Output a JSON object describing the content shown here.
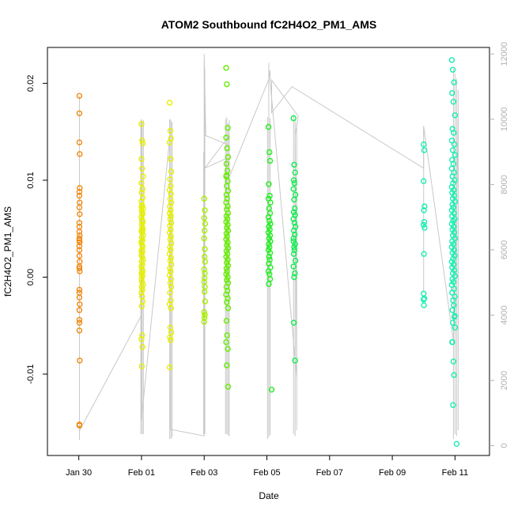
{
  "chart_data": {
    "type": "scatter",
    "title": "ATOM2 Southbound fC2H4O2_PM1_AMS",
    "xlabel": "Date",
    "ylabel": "fC2H4O2_PM1_AMS",
    "x_unit": "days",
    "xlim": [
      -0.5,
      13.6
    ],
    "ylim": [
      -0.0184,
      0.0237
    ],
    "y2lim": [
      -300,
      12200
    ],
    "x_ticks": [
      {
        "value": 0.5,
        "label": "Jan 30"
      },
      {
        "value": 2.5,
        "label": "Feb 01"
      },
      {
        "value": 4.5,
        "label": "Feb 03"
      },
      {
        "value": 6.5,
        "label": "Feb 05"
      },
      {
        "value": 8.5,
        "label": "Feb 07"
      },
      {
        "value": 10.5,
        "label": "Feb 09"
      },
      {
        "value": 12.5,
        "label": "Feb 11"
      }
    ],
    "y_ticks": [
      {
        "value": -0.01,
        "label": "-0.01"
      },
      {
        "value": 0.0,
        "label": "0.00"
      },
      {
        "value": 0.01,
        "label": "0.01"
      },
      {
        "value": 0.02,
        "label": "0.02"
      }
    ],
    "y2_ticks": [
      {
        "value": 0,
        "label": "0"
      },
      {
        "value": 2000,
        "label": "2000"
      },
      {
        "value": 4000,
        "label": "4000"
      },
      {
        "value": 6000,
        "label": "6000"
      },
      {
        "value": 8000,
        "label": "8000"
      },
      {
        "value": 10000,
        "label": "10000"
      },
      {
        "value": 12000,
        "label": "12000"
      }
    ],
    "grid": false,
    "legend": "none",
    "colors": {
      "orange": "#f08a10",
      "yellow": "#e6f000",
      "chartreuse": "#a8f000",
      "lime": "#66ee00",
      "green": "#22ee22",
      "bright_green": "#10ee50",
      "aqua": "#18f0b0",
      "track": "#c8c8c8"
    },
    "series": [
      {
        "color": "#f08a10",
        "x": [
          0.52,
          0.52,
          0.52,
          0.53,
          0.53,
          0.52,
          0.52,
          0.53,
          0.52,
          0.53,
          0.52,
          0.52,
          0.52,
          0.53,
          0.52,
          0.52,
          0.53,
          0.52,
          0.52,
          0.52,
          0.53,
          0.52,
          0.52,
          0.53,
          0.52,
          0.52,
          0.52,
          0.53,
          0.52,
          0.52,
          0.52,
          0.52,
          0.53,
          0.52,
          0.52
        ],
        "y": [
          0.0187,
          0.0169,
          0.0139,
          0.0127,
          0.0092,
          0.0088,
          0.0084,
          0.0077,
          0.0072,
          0.0065,
          0.0056,
          0.0052,
          0.0047,
          0.0043,
          0.004,
          0.0038,
          0.0036,
          0.0032,
          0.0028,
          0.0022,
          0.0016,
          0.0011,
          0.0009,
          0.0006,
          -0.0013,
          -0.0016,
          -0.0021,
          -0.0028,
          -0.0034,
          -0.0044,
          -0.0047,
          -0.0055,
          -0.0086,
          -0.0152,
          -0.0153
        ]
      },
      {
        "color": "#e6f000",
        "x": [
          2.5,
          2.52,
          2.54,
          2.5,
          2.52,
          2.55,
          2.5,
          2.53,
          2.51,
          2.54,
          2.5,
          2.52,
          2.55,
          2.51,
          2.53,
          2.5,
          2.52,
          2.54,
          2.51,
          2.53,
          2.5,
          2.52,
          2.55,
          2.51,
          2.53,
          2.5,
          2.52,
          2.54,
          2.51,
          2.53,
          2.5,
          2.52,
          2.55,
          2.51,
          2.53,
          2.5,
          2.52,
          2.54,
          2.51,
          2.53,
          2.5,
          2.52,
          2.55,
          2.51,
          2.53,
          2.5,
          2.52,
          2.54,
          2.51,
          2.53,
          2.5,
          2.52,
          2.54,
          2.51,
          2.5,
          2.52,
          2.5,
          2.53,
          2.51,
          2.5
        ],
        "y": [
          0.0158,
          0.0141,
          0.0138,
          0.0122,
          0.0112,
          0.0104,
          0.0097,
          0.0091,
          0.0087,
          0.0082,
          0.0078,
          0.0074,
          0.0071,
          0.0068,
          0.0065,
          0.0062,
          0.0059,
          0.0057,
          0.0054,
          0.0051,
          0.0048,
          0.0046,
          0.0043,
          0.0041,
          0.0038,
          0.0036,
          0.0033,
          0.0031,
          0.0028,
          0.0026,
          0.0023,
          0.0021,
          0.0018,
          0.0016,
          0.0013,
          0.0011,
          0.0008,
          0.0006,
          0.0003,
          0.0001,
          -0.0002,
          -0.0005,
          -0.0008,
          -0.001,
          -0.0013,
          -0.0016,
          -0.002,
          -0.0025,
          -0.003,
          0.0066,
          0.0072,
          0.0058,
          0.0049,
          0.0037,
          0.0027,
          -0.006,
          -0.0064,
          -0.0072,
          -0.0092,
          0.0004
        ]
      },
      {
        "color": "#e6f000",
        "x": [
          3.4,
          3.42,
          3.44,
          3.4,
          3.43,
          3.45,
          3.41,
          3.43,
          3.4,
          3.44,
          3.42,
          3.45,
          3.41,
          3.43,
          3.4,
          3.44,
          3.42,
          3.45,
          3.41,
          3.43,
          3.4,
          3.44,
          3.42,
          3.45,
          3.41,
          3.43,
          3.4,
          3.44,
          3.42,
          3.45,
          3.41,
          3.43,
          3.4,
          3.44,
          3.42,
          3.45,
          3.41,
          3.43,
          3.4,
          3.44,
          3.42,
          3.45,
          3.41,
          3.43,
          3.4
        ],
        "y": [
          0.018,
          0.0151,
          0.0143,
          0.0139,
          0.0122,
          0.0109,
          0.0101,
          0.0094,
          0.009,
          0.0086,
          0.0081,
          0.0077,
          0.0073,
          0.0069,
          0.0066,
          0.0063,
          0.006,
          0.0056,
          0.0053,
          0.0049,
          0.0046,
          0.0042,
          0.0039,
          0.0035,
          0.0031,
          0.0028,
          0.0024,
          0.002,
          0.0017,
          0.0013,
          0.0009,
          0.0006,
          0.0002,
          -0.0002,
          -0.0006,
          -0.001,
          -0.0016,
          -0.0024,
          -0.0028,
          -0.0032,
          -0.0052,
          -0.0057,
          -0.0062,
          -0.0065,
          -0.0093
        ]
      },
      {
        "color": "#a8f000",
        "x": [
          4.5,
          4.52,
          4.5,
          4.53,
          4.51,
          4.5,
          4.52,
          4.51,
          4.53,
          4.5,
          4.52,
          4.51,
          4.5,
          4.52,
          4.51,
          4.53,
          4.5,
          4.52,
          4.51,
          4.5
        ],
        "y": [
          0.0081,
          0.0069,
          0.0061,
          0.0055,
          0.0048,
          0.004,
          0.0029,
          0.0021,
          0.0016,
          0.0008,
          0.0004,
          -0.0001,
          -0.0005,
          -0.001,
          -0.0015,
          -0.0025,
          -0.0036,
          -0.0039,
          -0.0042,
          -0.0046
        ]
      },
      {
        "color": "#66ee00",
        "x": [
          5.2,
          5.22,
          5.25,
          5.2,
          5.23,
          5.26,
          5.21,
          5.24,
          5.2,
          5.25,
          5.22,
          5.26,
          5.21,
          5.23,
          5.2,
          5.25,
          5.22,
          5.26,
          5.21,
          5.24,
          5.2,
          5.25,
          5.22,
          5.26,
          5.21,
          5.23,
          5.2,
          5.25,
          5.22,
          5.26,
          5.21,
          5.24,
          5.2,
          5.25,
          5.22,
          5.26,
          5.21,
          5.23,
          5.2,
          5.25,
          5.22,
          5.26,
          5.21,
          5.24,
          5.2,
          5.25,
          5.22,
          5.26,
          5.21,
          5.23,
          5.2,
          5.25,
          5.22,
          5.26,
          5.21
        ],
        "y": [
          0.0216,
          0.0199,
          0.0154,
          0.0144,
          0.0133,
          0.0124,
          0.0117,
          0.011,
          0.0104,
          0.0099,
          0.0094,
          0.0089,
          0.0085,
          0.0081,
          0.0077,
          0.0073,
          0.007,
          0.0066,
          0.0063,
          0.006,
          0.0057,
          0.0054,
          0.0051,
          0.0048,
          0.0045,
          0.0042,
          0.0039,
          0.0036,
          0.0033,
          0.003,
          0.0027,
          0.0024,
          0.0021,
          0.0018,
          0.0015,
          0.0012,
          0.0009,
          0.0006,
          0.0003,
          0.0,
          -0.0003,
          -0.0006,
          -0.001,
          -0.0014,
          -0.0018,
          -0.0022,
          -0.0026,
          -0.0032,
          -0.0045,
          -0.006,
          -0.0067,
          -0.0074,
          -0.0091,
          -0.0113,
          0.0105
        ]
      },
      {
        "color": "#22ee22",
        "x": [
          6.55,
          6.58,
          6.6,
          6.56,
          6.59,
          6.55,
          6.61,
          6.57,
          6.6,
          6.55,
          6.58,
          6.61,
          6.56,
          6.59,
          6.55,
          6.6,
          6.57,
          6.61,
          6.56,
          6.58,
          6.55,
          6.6,
          6.57,
          6.59,
          6.56,
          6.61,
          6.55,
          6.58,
          6.6,
          6.56,
          6.65
        ],
        "y": [
          0.0155,
          0.0129,
          0.012,
          0.0096,
          0.0084,
          0.0081,
          0.0077,
          0.0071,
          0.0066,
          0.0062,
          0.0058,
          0.0055,
          0.0052,
          0.0049,
          0.0046,
          0.0043,
          0.004,
          0.0037,
          0.0034,
          0.0031,
          0.0028,
          0.0025,
          0.0021,
          0.0018,
          0.0014,
          0.001,
          0.0006,
          0.0003,
          -0.0002,
          -0.0007,
          -0.0116
        ]
      },
      {
        "color": "#10ee50",
        "x": [
          7.35,
          7.37,
          7.4,
          7.36,
          7.38,
          7.35,
          7.41,
          7.37,
          7.39,
          7.36,
          7.4,
          7.35,
          7.38,
          7.41,
          7.36,
          7.39,
          7.35,
          7.4,
          7.37,
          7.38,
          7.36,
          7.41,
          7.35,
          7.39,
          7.37,
          7.36,
          7.4,
          7.35
        ],
        "y": [
          0.0164,
          0.0116,
          0.0108,
          0.01,
          0.0097,
          0.0091,
          0.0085,
          0.008,
          0.0071,
          0.0067,
          0.0064,
          0.006,
          0.0056,
          0.0052,
          0.0048,
          0.0044,
          0.004,
          0.0034,
          0.0031,
          0.0028,
          0.0024,
          0.0017,
          0.0011,
          0.0004,
          0.0,
          -0.0047,
          -0.0086,
          0.0037
        ]
      },
      {
        "color": "#18f0b0",
        "x": [
          11.5,
          11.52,
          11.5,
          11.53,
          11.51,
          11.52,
          11.5,
          11.53,
          11.51,
          11.5,
          11.52,
          11.51,
          11.5
        ],
        "y": [
          0.0137,
          0.0131,
          0.0099,
          0.0073,
          0.0069,
          0.0057,
          0.0054,
          0.0051,
          0.0024,
          -0.0017,
          -0.0022,
          -0.0029,
          -0.0023
        ]
      },
      {
        "color": "#18f0b0",
        "x": [
          12.4,
          12.43,
          12.47,
          12.41,
          12.45,
          12.5,
          12.42,
          12.46,
          12.4,
          12.48,
          12.43,
          12.5,
          12.41,
          12.45,
          12.4,
          12.47,
          12.42,
          12.49,
          12.44,
          12.4,
          12.46,
          12.41,
          12.48,
          12.43,
          12.5,
          12.42,
          12.45,
          12.4,
          12.47,
          12.41,
          12.49,
          12.44,
          12.4,
          12.46,
          12.42,
          12.48,
          12.43,
          12.5,
          12.41,
          12.45,
          12.4,
          12.47,
          12.42,
          12.49,
          12.44,
          12.4,
          12.46,
          12.41,
          12.48,
          12.43,
          12.5,
          12.42,
          12.45,
          12.4,
          12.47,
          12.41,
          12.49,
          12.44,
          12.46,
          12.42,
          12.48,
          12.43,
          12.5,
          12.41,
          12.45,
          12.47,
          12.42,
          12.49,
          12.44,
          12.55
        ],
        "y": [
          0.0224,
          0.0214,
          0.0201,
          0.019,
          0.0181,
          0.0167,
          0.0153,
          0.0149,
          0.0141,
          0.0137,
          0.0131,
          0.0126,
          0.0121,
          0.0117,
          0.0112,
          0.0108,
          0.0104,
          0.01,
          0.0097,
          0.0093,
          0.009,
          0.0087,
          0.0084,
          0.0081,
          0.0078,
          0.0075,
          0.0072,
          0.0069,
          0.0066,
          0.0063,
          0.006,
          0.0058,
          0.0055,
          0.0052,
          0.0049,
          0.0046,
          0.0043,
          0.004,
          0.0037,
          0.0034,
          0.0031,
          0.0028,
          0.0025,
          0.0022,
          0.0019,
          0.0016,
          0.0013,
          0.001,
          0.0007,
          0.0004,
          0.0001,
          -0.0002,
          -0.0005,
          -0.0008,
          -0.0012,
          -0.0016,
          -0.002,
          -0.0024,
          -0.0029,
          -0.0034,
          -0.0041,
          -0.0047,
          -0.0052,
          -0.0067,
          -0.0087,
          -0.0101,
          -0.0067,
          -0.004,
          -0.0132,
          -0.0172
        ]
      }
    ],
    "track_right_axis": {
      "color": "#c8c8c8",
      "x": [
        0.52,
        2.5,
        2.5,
        2.5,
        3.45,
        3.4,
        3.42,
        4.5,
        4.5,
        4.55,
        5.3,
        5.3,
        4.52,
        5.2,
        5.2,
        6.55,
        6.6,
        6.6,
        7.45,
        7.4,
        7.5,
        6.65,
        6.65,
        7.3,
        11.5,
        11.5,
        12.45,
        12.5,
        12.6,
        12.6
      ],
      "y": [
        450,
        4000,
        10000,
        800,
        9900,
        10000,
        500,
        300,
        12000,
        9500,
        9200,
        9500,
        8500,
        8800,
        8000,
        11200,
        11500,
        11200,
        2100,
        9500,
        10100,
        11200,
        10200,
        11000,
        8500,
        9800,
        3200,
        5000,
        10000,
        2700
      ]
    },
    "track_vertical_spans": {
      "color": "#c8c8c8",
      "x": [
        0.52,
        2.48,
        2.52,
        2.56,
        3.4,
        3.44,
        3.48,
        4.48,
        4.52,
        5.18,
        5.22,
        5.26,
        5.3,
        6.52,
        6.56,
        6.6,
        7.35,
        7.4,
        7.45,
        11.5,
        12.45,
        12.5,
        12.55,
        12.6
      ],
      "ylo": [
        0.0187,
        -0.0162,
        -0.0162,
        -0.0162,
        -0.0167,
        -0.0167,
        -0.0165,
        -0.0162,
        -0.0162,
        -0.0162,
        -0.0162,
        -0.0163,
        -0.0164,
        -0.0167,
        -0.0165,
        -0.0163,
        -0.0162,
        -0.0164,
        -0.0158,
        -0.0016,
        -0.0167,
        -0.0162,
        -0.0164,
        -0.0158
      ],
      "yhi": [
        -0.0168,
        0.0162,
        0.0161,
        0.0162,
        0.0162,
        0.0161,
        0.016,
        0.0129,
        0.0215,
        0.0163,
        0.0165,
        0.0159,
        0.0162,
        0.0165,
        0.0221,
        0.0164,
        0.0168,
        0.0163,
        0.0158,
        0.0153,
        0.0215,
        0.021,
        0.0205,
        0.0193
      ]
    }
  }
}
